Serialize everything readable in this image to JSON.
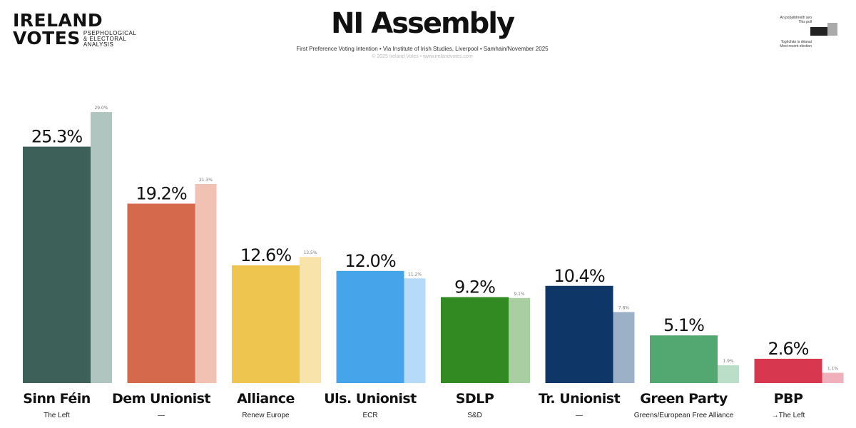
{
  "logo": {
    "line1": "IRELAND",
    "line2": "VOTES",
    "tag1": "PSEPHOLOGICAL",
    "tag2": "& ELECTORAL",
    "tag3": "ANALYSIS"
  },
  "header": {
    "title": "NI Assembly",
    "subtitle": "First Preference Voting Intention • Via Institute of Irish Studies, Liverpool • Samhain/November 2025",
    "credit": "© 2025 Ireland Votes • www.irelandvotes.com"
  },
  "legend": {
    "this_poll_ga": "An pobalbhreith seo",
    "this_poll_en": "This poll",
    "prev_ga": "Toghchán is déanaí",
    "prev_en": "Most recent election"
  },
  "chart_data": {
    "type": "bar",
    "title": "NI Assembly",
    "categories": [
      "Sinn Féin",
      "Dem Unionist",
      "Alliance",
      "Uls. Unionist",
      "SDLP",
      "Tr. Unionist",
      "Green Party",
      "PBP"
    ],
    "groups": [
      "The Left",
      "—",
      "Renew Europe",
      "ECR",
      "S&D",
      "—",
      "Greens/European Free Alliance",
      "→The Left"
    ],
    "series": [
      {
        "name": "This poll",
        "values": [
          25.3,
          19.2,
          12.6,
          12.0,
          9.2,
          10.4,
          5.1,
          2.6
        ]
      },
      {
        "name": "Most recent election",
        "values": [
          29.0,
          21.3,
          13.5,
          11.2,
          9.1,
          7.6,
          1.9,
          1.1
        ]
      }
    ],
    "value_labels_poll": [
      "25.3%",
      "19.2%",
      "12.6%",
      "12.0%",
      "9.2%",
      "10.4%",
      "5.1%",
      "2.6%"
    ],
    "value_labels_prev": [
      "29.0%",
      "21.3%",
      "13.5%",
      "11.2%",
      "9.1%",
      "7.6%",
      "1.9%",
      "1.1%"
    ],
    "colors": [
      "#3d6158",
      "#d4694b",
      "#eec54f",
      "#46a4ea",
      "#318a22",
      "#0e3767",
      "#53a872",
      "#d73850"
    ],
    "colors_prev": [
      "#b0c4c0",
      "#f1c1b3",
      "#f8e3ab",
      "#b5dbf8",
      "#a8cea1",
      "#9cb0c7",
      "#badec7",
      "#efafbb"
    ],
    "ylim": [
      0,
      30
    ],
    "grid": false
  }
}
